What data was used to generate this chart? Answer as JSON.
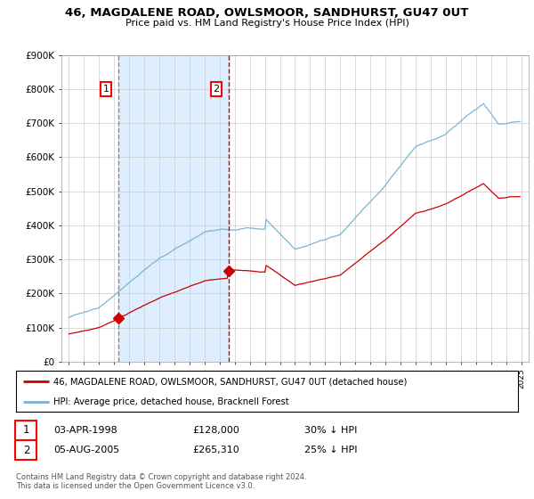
{
  "title": "46, MAGDALENE ROAD, OWLSMOOR, SANDHURST, GU47 0UT",
  "subtitle": "Price paid vs. HM Land Registry's House Price Index (HPI)",
  "ylim": [
    0,
    900000
  ],
  "yticks": [
    0,
    100000,
    200000,
    300000,
    400000,
    500000,
    600000,
    700000,
    800000,
    900000
  ],
  "ytick_labels": [
    "£0",
    "£100K",
    "£200K",
    "£300K",
    "£400K",
    "£500K",
    "£600K",
    "£700K",
    "£800K",
    "£900K"
  ],
  "hpi_color": "#7ab3d4",
  "price_color": "#cc0000",
  "purchase1_year": 1998.25,
  "purchase1_price": 128000,
  "purchase2_year": 2005.58,
  "purchase2_price": 265310,
  "vline1_color": "#888888",
  "vline2_color": "#cc0000",
  "shade_color": "#ddeeff",
  "legend_label_price": "46, MAGDALENE ROAD, OWLSMOOR, SANDHURST, GU47 0UT (detached house)",
  "legend_label_hpi": "HPI: Average price, detached house, Bracknell Forest",
  "table_row1_date": "03-APR-1998",
  "table_row1_price": "£128,000",
  "table_row1_hpi": "30% ↓ HPI",
  "table_row2_date": "05-AUG-2005",
  "table_row2_price": "£265,310",
  "table_row2_hpi": "25% ↓ HPI",
  "footnote": "Contains HM Land Registry data © Crown copyright and database right 2024.\nThis data is licensed under the Open Government Licence v3.0.",
  "bg_color": "#ffffff",
  "grid_color": "#cccccc",
  "xmin": 1994.5,
  "xmax": 2025.5
}
